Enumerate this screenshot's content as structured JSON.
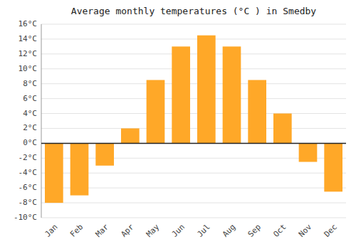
{
  "chart_data": {
    "type": "bar",
    "title": "Average monthly temperatures (°C ) in Smedby",
    "categories": [
      "Jan",
      "Feb",
      "Mar",
      "Apr",
      "May",
      "Jun",
      "Jul",
      "Aug",
      "Sep",
      "Oct",
      "Nov",
      "Dec"
    ],
    "values": [
      -8.0,
      -7.0,
      -3.0,
      2.0,
      8.5,
      13.0,
      14.5,
      13.0,
      8.5,
      4.0,
      -2.5,
      -6.5
    ],
    "color": "#FFA828",
    "ylim": [
      -10,
      16
    ],
    "yticks": [
      {
        "value": -10,
        "label": "-10°C"
      },
      {
        "value": -8,
        "label": "-8°C"
      },
      {
        "value": -6,
        "label": "-6°C"
      },
      {
        "value": -4,
        "label": "-4°C"
      },
      {
        "value": -2,
        "label": "-2°C"
      },
      {
        "value": 0,
        "label": "0°C"
      },
      {
        "value": 2,
        "label": "2°C"
      },
      {
        "value": 4,
        "label": "4°C"
      },
      {
        "value": 6,
        "label": "6°C"
      },
      {
        "value": 8,
        "label": "8°C"
      },
      {
        "value": 10,
        "label": "10°C"
      },
      {
        "value": 12,
        "label": "12°C"
      },
      {
        "value": 14,
        "label": "14°C"
      },
      {
        "value": 16,
        "label": "16°C"
      }
    ],
    "grid": true
  }
}
